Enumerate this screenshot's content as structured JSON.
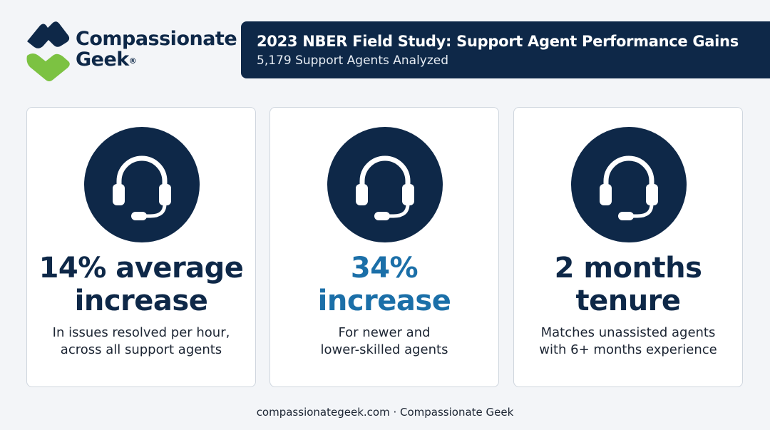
{
  "brand": {
    "name_line1": "Compassionate",
    "name_line2": "Geek",
    "registered_mark": "®",
    "colors": {
      "navy": "#0e2848",
      "green": "#7cc242",
      "accent_blue": "#1b6fa8"
    }
  },
  "header": {
    "title": "2023 NBER Field Study: Support Agent Performance Gains",
    "subtitle": "5,179 Support Agents Analyzed"
  },
  "cards": [
    {
      "icon": "headset-icon",
      "stat_line1": "14% average",
      "stat_line2": "increase",
      "desc_line1": "In issues resolved per hour,",
      "desc_line2": "across all support agents"
    },
    {
      "icon": "headset-icon",
      "stat_line1": "34%",
      "stat_line2": "increase",
      "desc_line1": "For newer and",
      "desc_line2": "lower-skilled agents"
    },
    {
      "icon": "headset-icon",
      "stat_line1": "2 months",
      "stat_line2": "tenure",
      "desc_line1": "Matches unassisted agents",
      "desc_line2": "with 6+ months experience"
    }
  ],
  "footer": {
    "text": "compassionategeek.com · Compassionate Geek"
  }
}
